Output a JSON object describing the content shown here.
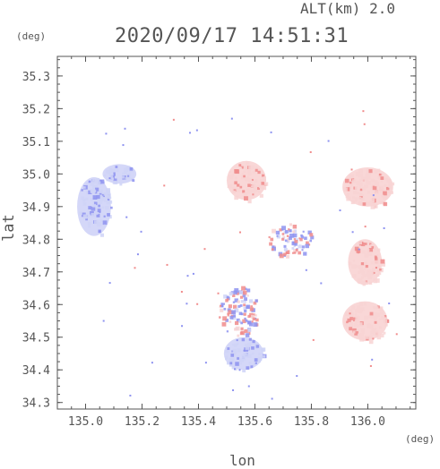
{
  "header": {
    "altitude_label": "ALT(km)  2.0",
    "timestamp": "2020/09/17 14:51:31"
  },
  "axes": {
    "y_unit": "(deg)",
    "x_unit": "(deg)",
    "ylabel": "lat",
    "xlabel": "lon",
    "x_range": [
      134.9,
      136.17
    ],
    "y_range": [
      34.28,
      35.36
    ],
    "x_ticks": [
      135.0,
      135.2,
      135.4,
      135.6,
      135.8,
      136.0
    ],
    "x_tick_labels": [
      "135.0",
      "135.2",
      "135.4",
      "135.6",
      "135.8",
      "136.0"
    ],
    "y_ticks": [
      34.3,
      34.4,
      34.5,
      34.6,
      34.7,
      34.8,
      34.9,
      35.0,
      35.1,
      35.2,
      35.3
    ],
    "y_tick_labels": [
      "34.3",
      "34.4",
      "34.5",
      "34.6",
      "34.7",
      "34.8",
      "34.9",
      "35.0",
      "35.1",
      "35.2",
      "35.3"
    ]
  },
  "colors": {
    "approaching": "#8e93f0",
    "approaching_light": "#cfd3f7",
    "receding": "#f08c8c",
    "receding_light": "#f8d3d3",
    "axis": "#555555"
  },
  "radar_echo_regions": [
    {
      "id": "nw-band",
      "lon": 135.03,
      "lat": 34.9,
      "rlon": 0.06,
      "rlat": 0.09,
      "tone": "approaching_light"
    },
    {
      "id": "nw-top",
      "lon": 135.12,
      "lat": 35.0,
      "rlon": 0.06,
      "rlat": 0.03,
      "tone": "approaching_light"
    },
    {
      "id": "north-central",
      "lon": 135.57,
      "lat": 34.98,
      "rlon": 0.07,
      "rlat": 0.06,
      "tone": "receding_light"
    },
    {
      "id": "northeast",
      "lon": 136.0,
      "lat": 34.96,
      "rlon": 0.09,
      "rlat": 0.06,
      "tone": "receding_light"
    },
    {
      "id": "east-mid",
      "lon": 135.99,
      "lat": 34.73,
      "rlon": 0.06,
      "rlat": 0.07,
      "tone": "receding_light"
    },
    {
      "id": "east-south",
      "lon": 135.99,
      "lat": 34.55,
      "rlon": 0.08,
      "rlat": 0.06,
      "tone": "receding_light"
    },
    {
      "id": "central-south",
      "lon": 135.54,
      "lat": 34.58,
      "rlon": 0.07,
      "rlat": 0.08,
      "tone": "mixed"
    },
    {
      "id": "south-blue",
      "lon": 135.56,
      "lat": 34.45,
      "rlon": 0.07,
      "rlat": 0.05,
      "tone": "approaching_light"
    },
    {
      "id": "central-band",
      "lon": 135.72,
      "lat": 34.8,
      "rlon": 0.08,
      "rlat": 0.05,
      "tone": "mixed"
    }
  ]
}
